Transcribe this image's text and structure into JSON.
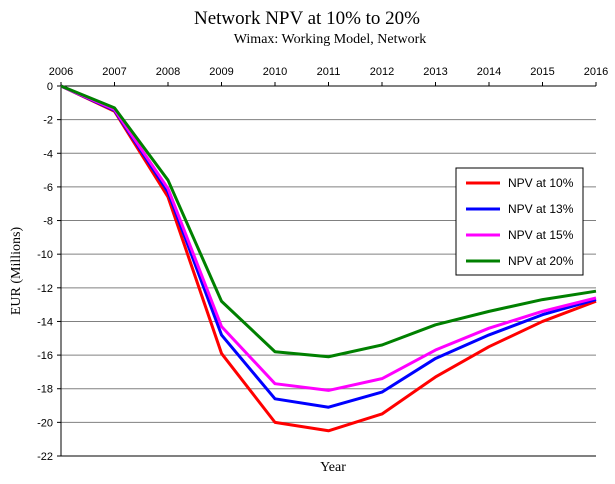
{
  "chart_data": {
    "type": "line",
    "title": "Network NPV at 10% to 20%",
    "subtitle": "Wimax: Working Model, Network",
    "xlabel": "Year",
    "ylabel": "EUR  (Millions)",
    "x": [
      "2006",
      "2007",
      "2008",
      "2009",
      "2010",
      "2011",
      "2012",
      "2013",
      "2014",
      "2015",
      "2016"
    ],
    "ylim": [
      -22,
      0
    ],
    "yticks": [
      "0",
      "-2",
      "-4",
      "-6",
      "-8",
      "-10",
      "-12",
      "-14",
      "-16",
      "-18",
      "-20",
      "-22"
    ],
    "ytick_values": [
      0,
      -2,
      -4,
      -6,
      -8,
      -10,
      -12,
      -14,
      -16,
      -18,
      -20,
      -22
    ],
    "grid": true,
    "legend_position": "right",
    "series": [
      {
        "name": "NPV at 10%",
        "color": "#ff0000",
        "values": [
          0,
          -1.5,
          -6.6,
          -15.9,
          -20.0,
          -20.5,
          -19.5,
          -17.3,
          -15.5,
          -14.0,
          -12.8
        ]
      },
      {
        "name": "NPV at 13%",
        "color": "#0000ff",
        "values": [
          0,
          -1.45,
          -6.3,
          -14.8,
          -18.6,
          -19.1,
          -18.2,
          -16.2,
          -14.8,
          -13.6,
          -12.7
        ]
      },
      {
        "name": "NPV at 15%",
        "color": "#ff00ff",
        "values": [
          0,
          -1.4,
          -6.1,
          -14.3,
          -17.7,
          -18.1,
          -17.4,
          -15.7,
          -14.4,
          -13.4,
          -12.6
        ]
      },
      {
        "name": "NPV at 20%",
        "color": "#008000",
        "values": [
          0,
          -1.3,
          -5.6,
          -12.8,
          -15.8,
          -16.1,
          -15.4,
          -14.2,
          -13.4,
          -12.7,
          -12.2
        ]
      }
    ]
  }
}
